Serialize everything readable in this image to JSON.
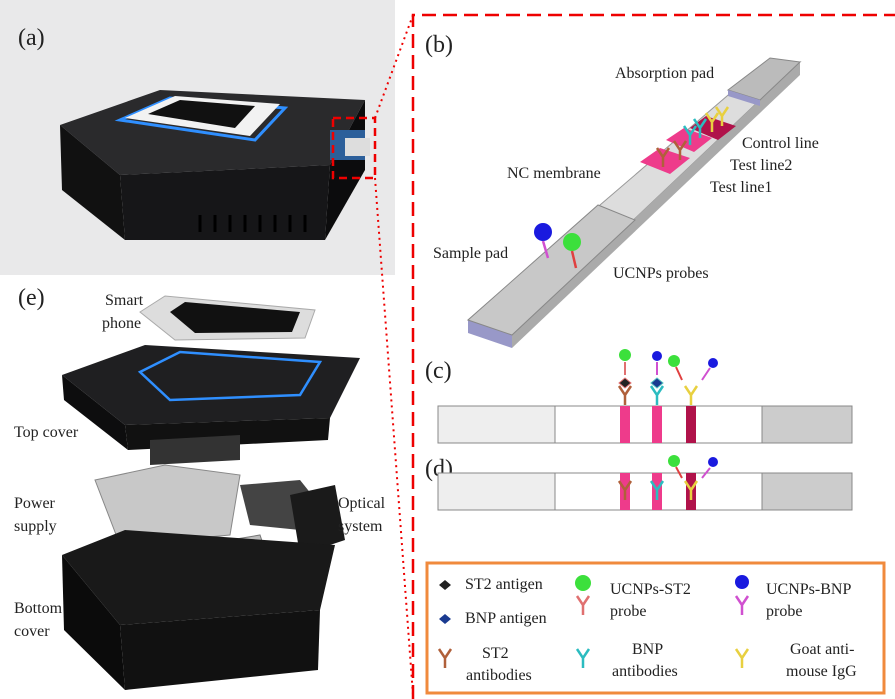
{
  "panels": {
    "a": "(a)",
    "b": "(b)",
    "c": "(c)",
    "d": "(d)",
    "e": "(e)"
  },
  "strip_labels": {
    "absorption_pad": "Absorption pad",
    "control_line": "Control line",
    "test_line2": "Test line2",
    "nc_membrane": "NC membrane",
    "test_line1": "Test line1",
    "sample_pad": "Sample pad",
    "ucnps_probes": "UCNPs probes"
  },
  "device_labels": {
    "smart_phone": [
      "Smart",
      "phone"
    ],
    "top_cover": [
      "Top cover"
    ],
    "power_supply": [
      "Power",
      "supply"
    ],
    "optical_system": [
      "Optical",
      "system"
    ],
    "bottom_cover": [
      "Bottom",
      "cover"
    ]
  },
  "legend": {
    "st2_antigen": [
      "ST2 antigen"
    ],
    "bnp_antigen": [
      "BNP antigen"
    ],
    "ucnps_st2_probe": [
      "UCNPs-ST2",
      "probe"
    ],
    "ucnps_bnp_probe": [
      "UCNPs-BNP",
      "probe"
    ],
    "st2_antibodies": [
      "ST2",
      "antibodies"
    ],
    "bnp_antibodies": [
      "BNP",
      "antibodies"
    ],
    "goat_igg": [
      "Goat anti-",
      "mouse IgG"
    ]
  }
}
